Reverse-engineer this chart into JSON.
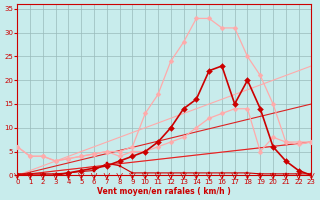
{
  "background_color": "#c8ecec",
  "grid_color": "#99bbbb",
  "xlabel": "Vent moyen/en rafales ( km/h )",
  "xlim": [
    0,
    23
  ],
  "ylim": [
    0,
    36
  ],
  "yticks": [
    0,
    5,
    10,
    15,
    20,
    25,
    30,
    35
  ],
  "xticks": [
    0,
    1,
    2,
    3,
    4,
    5,
    6,
    7,
    8,
    9,
    10,
    11,
    12,
    13,
    14,
    15,
    16,
    17,
    18,
    19,
    20,
    21,
    22,
    23
  ],
  "series": [
    {
      "name": "light_diag_low",
      "x": [
        0,
        23
      ],
      "y": [
        0,
        7
      ],
      "color": "#ffaaaa",
      "linewidth": 0.8,
      "marker": null,
      "markersize": 0
    },
    {
      "name": "light_diag_high",
      "x": [
        0,
        23
      ],
      "y": [
        0,
        23
      ],
      "color": "#ffaaaa",
      "linewidth": 0.8,
      "marker": null,
      "markersize": 0
    },
    {
      "name": "dark_diag_low",
      "x": [
        0,
        23
      ],
      "y": [
        0,
        7
      ],
      "color": "#dd2222",
      "linewidth": 0.8,
      "marker": null,
      "markersize": 0
    },
    {
      "name": "dark_diag_high",
      "x": [
        0,
        23
      ],
      "y": [
        0,
        15
      ],
      "color": "#dd2222",
      "linewidth": 0.8,
      "marker": null,
      "markersize": 0
    },
    {
      "name": "light_curve_low",
      "x": [
        0,
        1,
        2,
        3,
        4,
        5,
        6,
        7,
        8,
        9,
        10,
        11,
        12,
        13,
        14,
        15,
        16,
        17,
        18,
        19,
        20,
        21,
        22,
        23
      ],
      "y": [
        6,
        4,
        4,
        3,
        3.5,
        4,
        4.5,
        5,
        4,
        5,
        5,
        6,
        7,
        8,
        10,
        12,
        13,
        14,
        14,
        5,
        8,
        7,
        6.5,
        7
      ],
      "color": "#ffaaaa",
      "linewidth": 0.9,
      "marker": "D",
      "markersize": 2.5
    },
    {
      "name": "light_curve_high",
      "x": [
        0,
        1,
        2,
        3,
        4,
        5,
        6,
        7,
        8,
        9,
        10,
        11,
        12,
        13,
        14,
        15,
        16,
        17,
        18,
        19,
        20,
        21,
        22,
        23
      ],
      "y": [
        6,
        4,
        4,
        3,
        3.5,
        4,
        4.5,
        5,
        5,
        6,
        13,
        17,
        24,
        28,
        33,
        33,
        31,
        31,
        25,
        21,
        15,
        7,
        7,
        7
      ],
      "color": "#ffaaaa",
      "linewidth": 0.9,
      "marker": "D",
      "markersize": 2.5
    },
    {
      "name": "flat_dark_small",
      "x": [
        0,
        1,
        2,
        3,
        4,
        5,
        6,
        7,
        8,
        9,
        10,
        11,
        12,
        13,
        14,
        15,
        16,
        17,
        18,
        19,
        20,
        21,
        22,
        23
      ],
      "y": [
        0.3,
        0.3,
        0.3,
        0.3,
        0.5,
        0.8,
        1.0,
        2.5,
        2.0,
        0.5,
        0.5,
        0.5,
        0.5,
        0.5,
        0.5,
        0.5,
        0.5,
        0.5,
        0.5,
        0.3,
        0.3,
        0.3,
        0.3,
        0.3
      ],
      "color": "#cc0000",
      "linewidth": 0.8,
      "marker": "s",
      "markersize": 1.8
    },
    {
      "name": "dark_curve_main",
      "x": [
        0,
        1,
        2,
        3,
        4,
        5,
        6,
        7,
        8,
        9,
        10,
        11,
        12,
        13,
        14,
        15,
        16,
        17,
        18,
        19,
        20,
        21,
        22,
        23
      ],
      "y": [
        0,
        0,
        0,
        0,
        0.5,
        1,
        1.5,
        2,
        3,
        4,
        5,
        7,
        10,
        14,
        16,
        22,
        23,
        15,
        20,
        14,
        6,
        3,
        1,
        0
      ],
      "color": "#cc0000",
      "linewidth": 1.2,
      "marker": "D",
      "markersize": 3.0
    }
  ],
  "tick_color": "#cc0000",
  "label_color": "#cc0000",
  "spine_color": "#cc0000"
}
